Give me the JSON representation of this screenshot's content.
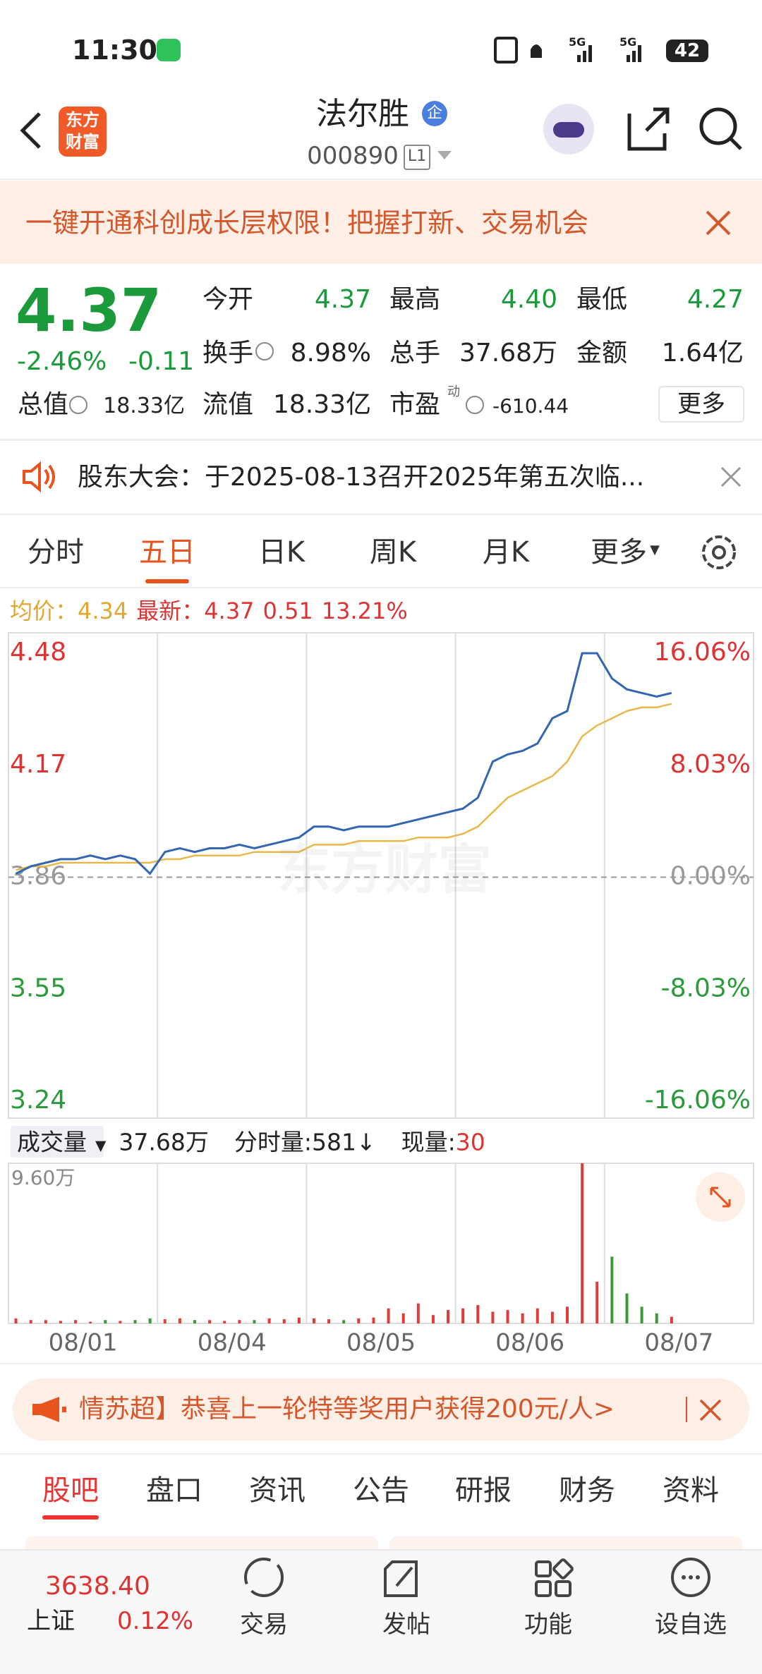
{
  "status_bar": {
    "time": "11:30",
    "network": [
      "5G",
      "5G"
    ],
    "battery": "42"
  },
  "header": {
    "logo": [
      "东方",
      "财富"
    ],
    "name": "法尔胜",
    "badge": "企",
    "code": "000890",
    "level": "L1"
  },
  "banner": {
    "text": "一键开通科创成长层权限！把握打新、交易机会"
  },
  "quote": {
    "price": "4.37",
    "change_pct": "-2.46%",
    "change": "-0.11",
    "market_cap_label": "总值",
    "market_cap": "18.33亿",
    "fields": [
      {
        "label": "今开",
        "value": "4.37"
      },
      {
        "label": "最高",
        "value": "4.40"
      },
      {
        "label": "最低",
        "value": "4.27"
      },
      {
        "label": "换手",
        "value": "8.98%"
      },
      {
        "label": "总手",
        "value": "37.68万"
      },
      {
        "label": "金额",
        "value": "1.64亿"
      },
      {
        "label": "流值",
        "value": "18.33亿"
      },
      {
        "label": "市盈",
        "sup": "动",
        "value": "-610.44"
      }
    ],
    "more": "更多"
  },
  "notice": {
    "text": "股东大会：于2025-08-13召开2025年第五次临..."
  },
  "tabs": {
    "items": [
      "分时",
      "五日",
      "日K",
      "周K",
      "月K",
      "更多"
    ],
    "active": 1
  },
  "legend": {
    "avg": "4.34",
    "latest": "4.37",
    "change": "0.51",
    "pct": "13.21%"
  },
  "watermark": "东方财富",
  "chart_data": [
    {
      "type": "line",
      "ylim": [
        3.24,
        4.48
      ],
      "yticks": [
        4.48,
        4.17,
        3.86,
        3.55,
        3.24
      ],
      "y2lim": [
        -16.06,
        16.06
      ],
      "y2ticks": [
        {
          "value": 16.06,
          "label": "16.06%"
        },
        {
          "value": 8.03,
          "label": "8.03%"
        },
        {
          "value": 0,
          "label": "0.00%"
        },
        {
          "value": -8.03,
          "label": "-8.03%"
        },
        {
          "value": -16.06,
          "label": "-16.06%"
        }
      ],
      "series": [
        {
          "name": "最新：",
          "color": "#3465b0",
          "values": [
            3.87,
            3.89,
            3.9,
            3.91,
            3.91,
            3.92,
            3.91,
            3.92,
            3.91,
            3.87,
            3.93,
            3.94,
            3.93,
            3.94,
            3.94,
            3.95,
            3.94,
            3.95,
            3.96,
            3.97,
            4.0,
            4.0,
            3.99,
            4.0,
            4.0,
            4.0,
            4.01,
            4.02,
            4.03,
            4.04,
            4.05,
            4.08,
            4.18,
            4.2,
            4.21,
            4.23,
            4.3,
            4.32,
            4.48,
            4.48,
            4.41,
            4.38,
            4.37,
            4.36,
            4.37,
            null,
            null,
            null,
            null,
            null
          ]
        },
        {
          "name": "均价：",
          "color": "#e8b84a",
          "values": [
            3.88,
            3.89,
            3.89,
            3.9,
            3.9,
            3.9,
            3.9,
            3.9,
            3.9,
            3.9,
            3.91,
            3.91,
            3.92,
            3.92,
            3.92,
            3.92,
            3.93,
            3.93,
            3.93,
            3.93,
            3.95,
            3.95,
            3.95,
            3.96,
            3.96,
            3.96,
            3.96,
            3.97,
            3.97,
            3.97,
            3.98,
            4.0,
            4.04,
            4.08,
            4.1,
            4.12,
            4.14,
            4.18,
            4.25,
            4.28,
            4.3,
            4.32,
            4.33,
            4.33,
            4.34,
            null,
            null,
            null,
            null,
            null
          ]
        }
      ]
    },
    {
      "type": "bar",
      "ylim": [
        0,
        9.6
      ],
      "yticks": [
        {
          "value": 9.6,
          "label": "9.60万"
        }
      ],
      "categories": [
        null,
        null,
        null,
        null,
        null,
        "08/01",
        null,
        null,
        null,
        null,
        null,
        null,
        null,
        null,
        null,
        "08/04",
        null,
        null,
        null,
        null,
        null,
        null,
        null,
        null,
        null,
        "08/05",
        null,
        null,
        null,
        null,
        null,
        null,
        null,
        null,
        null,
        "08/06",
        null,
        null,
        null,
        null,
        null,
        null,
        null,
        null,
        null,
        "08/07",
        null,
        null,
        null,
        null
      ],
      "values": [
        0.3,
        0.2,
        0.2,
        0.15,
        0.2,
        0.1,
        0.2,
        0.15,
        0.2,
        0.3,
        0.25,
        0.3,
        0.2,
        0.2,
        0.15,
        0.2,
        0.2,
        0.3,
        0.25,
        0.35,
        0.3,
        0.25,
        0.2,
        0.3,
        0.35,
        0.9,
        0.6,
        1.2,
        0.5,
        0.8,
        0.9,
        1.1,
        0.7,
        0.8,
        0.6,
        0.9,
        0.7,
        1.0,
        9.6,
        2.5,
        4.0,
        1.8,
        1.0,
        0.6,
        0.4,
        null,
        null,
        null,
        null,
        null
      ],
      "up_color": "#e03c3c",
      "down_color": "#3a9a3a"
    }
  ],
  "volume_header": {
    "label": "成交量",
    "total": "37.68万",
    "minute": "分时量:581↓",
    "current_label": "现量:",
    "current": "30"
  },
  "promo": {
    "text": "情苏超】恭喜上一轮特等奖用户获得200元/人>"
  },
  "bottom_tabs": {
    "items": [
      "股吧",
      "盘口",
      "资讯",
      "公告",
      "研报",
      "财务",
      "资料"
    ],
    "active": 0
  },
  "nav": {
    "index_value": "3638.40",
    "index_name": "上证",
    "index_change": "0.12%",
    "items": [
      "交易",
      "发帖",
      "功能",
      "设自选"
    ]
  }
}
